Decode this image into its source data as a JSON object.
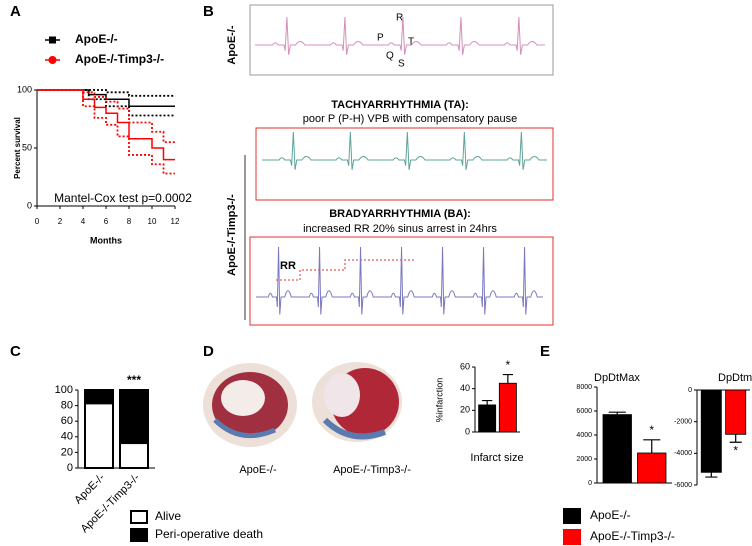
{
  "panel_letters": [
    "A",
    "B",
    "C",
    "D",
    "E"
  ],
  "ecg": {
    "row_labels": [
      "ApoE-/-",
      "ApoE-/-Timp3-/-"
    ],
    "waves": [
      "P",
      "Q",
      "R",
      "S",
      "T"
    ],
    "ta_title": "TACHYARRHYTHMIA (TA):",
    "ta_desc": "poor P (P-H) VPB with compensatory pause",
    "ba_title": "BRADYARRHYTHMIA (BA):",
    "ba_desc": "increased RR  20% sinus arrest in 24hrs",
    "rr": "RR"
  },
  "histology": {
    "captions": [
      "ApoE-/-",
      "ApoE-/-Timp3-/-"
    ]
  },
  "panel_e_legend": [
    {
      "name": "ApoE-/-",
      "color": "#000000"
    },
    {
      "name": "ApoE-/-Timp3-/-",
      "color": "#ff0000"
    }
  ],
  "chart_data": [
    {
      "type": "line",
      "xlabel": "Months",
      "ylabel": "Percent survival",
      "annotation": "Mantel-Cox test p=0.0002",
      "xlim": [
        0,
        12
      ],
      "ylim": [
        0,
        100
      ],
      "xticks": [
        0,
        2,
        4,
        6,
        8,
        10,
        12
      ],
      "yticks": [
        0,
        50,
        100
      ],
      "series": [
        {
          "name": "ApoE-/-",
          "color": "#000000",
          "marker": "square",
          "x": [
            0,
            4.5,
            4.5,
            6,
            6,
            8,
            8,
            12
          ],
          "values": [
            100,
            100,
            96,
            96,
            92,
            92,
            86,
            86
          ],
          "ci_upper": [
            100,
            100,
            100,
            100,
            98,
            98,
            95,
            95
          ],
          "ci_lower": [
            100,
            100,
            92,
            92,
            86,
            86,
            78,
            78
          ]
        },
        {
          "name": "ApoE-/-Timp3-/-",
          "color": "#ff0000",
          "marker": "circle",
          "x": [
            0,
            4,
            4,
            5,
            5,
            6,
            6,
            7,
            7,
            8,
            8,
            10,
            10,
            11,
            11,
            12
          ],
          "values": [
            100,
            100,
            92,
            92,
            85,
            85,
            80,
            80,
            72,
            72,
            58,
            58,
            50,
            50,
            40,
            40
          ],
          "ci_upper": [
            100,
            100,
            98,
            98,
            94,
            94,
            90,
            90,
            84,
            84,
            72,
            72,
            64,
            64,
            55,
            55
          ],
          "ci_lower": [
            100,
            100,
            86,
            86,
            76,
            76,
            70,
            70,
            60,
            60,
            44,
            44,
            36,
            36,
            28,
            28
          ]
        }
      ]
    },
    {
      "type": "stacked_bar",
      "annotation": "***",
      "categories": [
        "ApoE-/-",
        "ApoE-/-Timp3-/-"
      ],
      "ylim": [
        0,
        100
      ],
      "yticks": [
        0,
        20,
        40,
        60,
        80,
        100
      ],
      "series": [
        {
          "name": "Alive",
          "color": "#ffffff",
          "values": [
            83,
            32
          ]
        },
        {
          "name": "Peri-operative death",
          "color": "#000000",
          "values": [
            17,
            68
          ]
        }
      ]
    },
    {
      "type": "bar",
      "ylabel": "%infarction",
      "xlabel": "Infarct size",
      "annotation": "*",
      "categories": [
        null,
        null
      ],
      "values": [
        25,
        45
      ],
      "errors": [
        4,
        8
      ],
      "colors": [
        "#000000",
        "#ff0000"
      ],
      "ylim": [
        0,
        60
      ],
      "yticks": [
        0,
        20,
        40,
        60
      ]
    },
    {
      "type": "bar",
      "title": "DpDtMax",
      "annotation": "*",
      "categories": [
        null,
        null
      ],
      "values": [
        5700,
        2500
      ],
      "errors": [
        200,
        1100
      ],
      "colors": [
        "#000000",
        "#ff0000"
      ],
      "ylim": [
        0,
        8000
      ],
      "yticks": [
        0,
        2000,
        4000,
        6000,
        8000
      ]
    },
    {
      "type": "bar",
      "title": "DpDtmin",
      "annotation": "*",
      "categories": [
        null,
        null
      ],
      "values": [
        -5200,
        -2800
      ],
      "errors": [
        300,
        500
      ],
      "colors": [
        "#000000",
        "#ff0000"
      ],
      "ylim": [
        -6000,
        0
      ],
      "yticks": [
        -6000,
        -4000,
        -2000,
        0
      ]
    }
  ]
}
